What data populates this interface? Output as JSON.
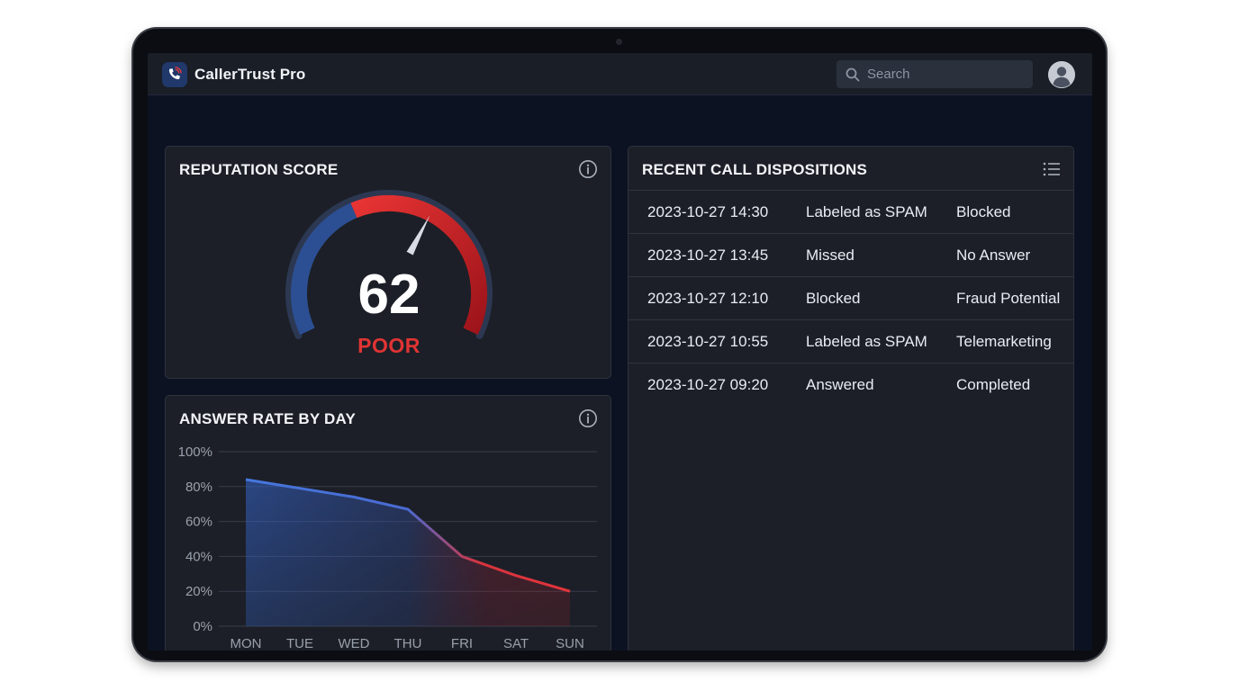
{
  "app": {
    "title": "CallerTrust Pro"
  },
  "search": {
    "placeholder": "Search"
  },
  "reputation": {
    "title": "REPUTATION SCORE",
    "score": 62,
    "score_text": "62",
    "rating": "POOR",
    "gauge_max": 100,
    "colors": {
      "blue": "#2c4f93",
      "red": "#e23030",
      "dark_red": "#a8161c",
      "track": "#2a3650"
    }
  },
  "answer_rate": {
    "title": "ANSWER RATE BY DAY",
    "chart_data": {
      "type": "area",
      "title": "ANSWER RATE BY DAY",
      "categories": [
        "MON",
        "TUE",
        "WED",
        "THU",
        "FRI",
        "SAT",
        "SUN"
      ],
      "values": [
        84,
        79,
        74,
        67,
        40,
        29,
        20
      ],
      "ylim": [
        0,
        100
      ],
      "yticks": [
        "0%",
        "20%",
        "40%",
        "60%",
        "80%",
        "100%"
      ],
      "ytick_values": [
        0,
        20,
        40,
        60,
        80,
        100
      ],
      "grid": true,
      "colors": {
        "start": "#3f6fd8",
        "end": "#e0333a"
      }
    }
  },
  "dispositions": {
    "title": "RECENT CALL DISPOSITIONS",
    "rows": [
      {
        "time": "2023-10-27 14:30",
        "status": "Labeled as SPAM",
        "result": "Blocked"
      },
      {
        "time": "2023-10-27 13:45",
        "status": "Missed",
        "result": "No Answer"
      },
      {
        "time": "2023-10-27 12:10",
        "status": "Blocked",
        "result": "Fraud Potential"
      },
      {
        "time": "2023-10-27 10:55",
        "status": "Labeled as SPAM",
        "result": "Telemarketing"
      },
      {
        "time": "2023-10-27 09:20",
        "status": "Answered",
        "result": "Completed"
      }
    ]
  },
  "icons": {
    "logo": "phone-shield-icon",
    "search": "search-icon",
    "avatar": "user-avatar-icon",
    "info": "info-icon",
    "list": "list-icon"
  }
}
